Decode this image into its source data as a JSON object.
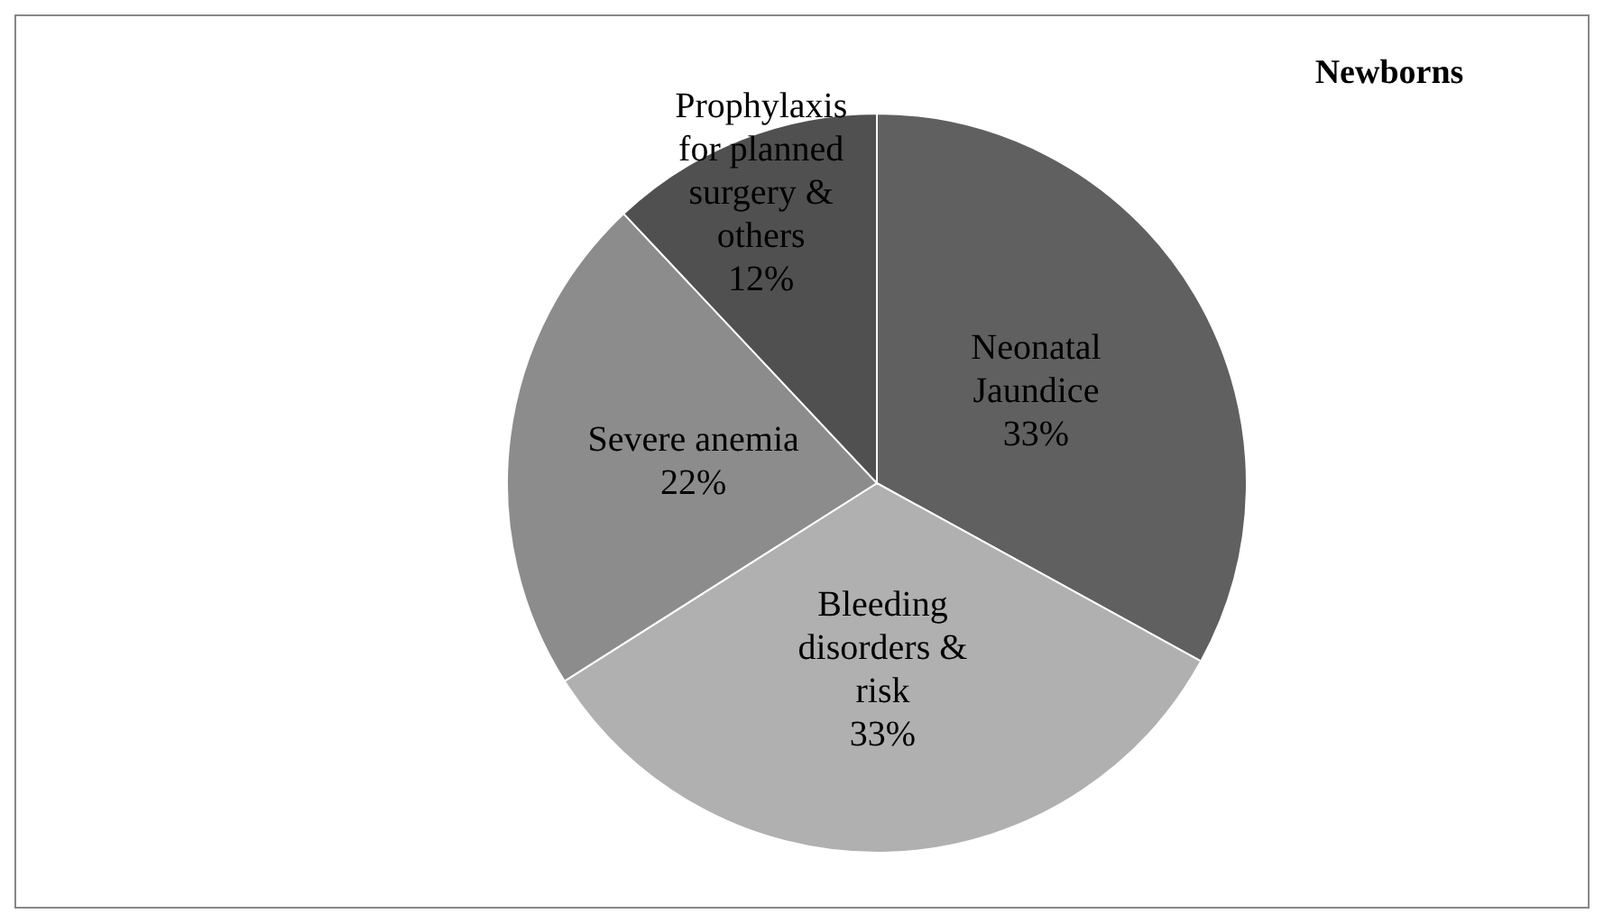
{
  "chart_data": {
    "type": "pie",
    "title": "Newborns",
    "categories": [
      "Neonatal Jaundice",
      "Bleeding disorders & risk",
      "Severe anemia",
      "Prophylaxis for planned surgery & others"
    ],
    "values": [
      33,
      33,
      22,
      12
    ],
    "colors": [
      "#606060",
      "#b0b0b0",
      "#8c8c8c",
      "#505050"
    ],
    "value_labels": [
      "33%",
      "33%",
      "22%",
      "12%"
    ]
  }
}
